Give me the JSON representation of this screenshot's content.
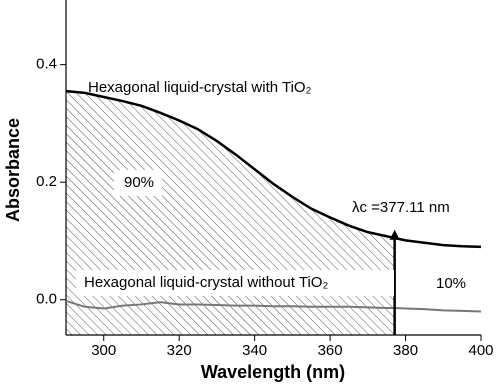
{
  "chart_data": {
    "type": "line",
    "x_label": "Wavelength (nm)",
    "y_label": "Absorbance",
    "x": [
      290,
      295,
      300,
      305,
      310,
      315,
      320,
      325,
      330,
      335,
      340,
      345,
      350,
      355,
      360,
      365,
      370,
      375,
      377.11,
      380,
      385,
      390,
      395,
      400
    ],
    "series": [
      {
        "name": "Hexagonal liquid-crystal with TiO₂",
        "color": "#000000",
        "values": [
          0.355,
          0.352,
          0.345,
          0.338,
          0.33,
          0.318,
          0.305,
          0.29,
          0.27,
          0.247,
          0.222,
          0.197,
          0.175,
          0.155,
          0.14,
          0.126,
          0.115,
          0.108,
          0.105,
          0.101,
          0.097,
          0.093,
          0.091,
          0.09
        ]
      },
      {
        "name": "Hexagonal liquid-crystal without TiO₂",
        "color": "#777777",
        "values": [
          -0.002,
          -0.012,
          -0.015,
          -0.01,
          -0.008,
          -0.004,
          -0.008,
          -0.008,
          -0.009,
          -0.01,
          -0.01,
          -0.011,
          -0.011,
          -0.012,
          -0.012,
          -0.012,
          -0.013,
          -0.014,
          -0.014,
          -0.015,
          -0.016,
          -0.018,
          -0.019,
          -0.02
        ]
      }
    ],
    "cutoff": {
      "value": 377.11,
      "label": "λc =377.11 nm"
    },
    "area_labels": [
      "90%",
      "10%"
    ],
    "xlim": [
      290,
      400
    ],
    "xticks": [
      300,
      320,
      340,
      360,
      380,
      400
    ],
    "ylim": [
      -0.06,
      0.51
    ],
    "yticks": [
      {
        "value": 0,
        "label": "0.0"
      },
      0.2,
      0.4
    ]
  }
}
